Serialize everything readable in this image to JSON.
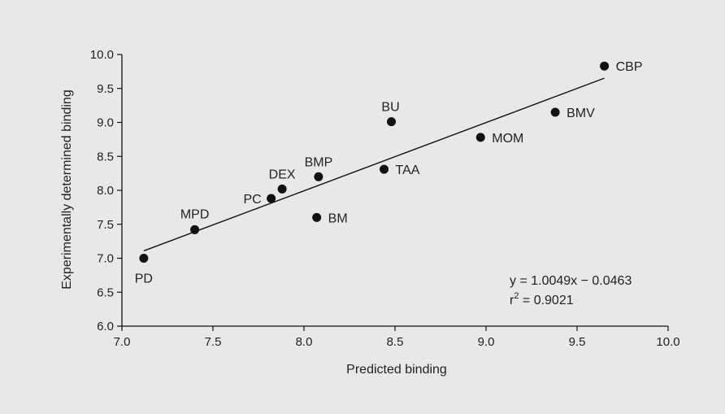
{
  "chart_data": {
    "type": "scatter",
    "title": "",
    "xlabel": "Predicted binding",
    "ylabel": "Experimentally determined binding",
    "xlim": [
      7.0,
      10.0
    ],
    "ylim": [
      6.0,
      10.0
    ],
    "xticks": [
      "7.0",
      "7.5",
      "8.0",
      "8.5",
      "9.0",
      "9.5",
      "10.0"
    ],
    "yticks": [
      "6.0",
      "6.5",
      "7.0",
      "7.5",
      "8.0",
      "8.5",
      "9.0",
      "9.5",
      "10.0"
    ],
    "grid": false,
    "points": [
      {
        "label": "PD",
        "x": 7.12,
        "y": 7.0
      },
      {
        "label": "MPD",
        "x": 7.4,
        "y": 7.42
      },
      {
        "label": "PC",
        "x": 7.82,
        "y": 7.88
      },
      {
        "label": "DEX",
        "x": 7.88,
        "y": 8.02
      },
      {
        "label": "BMP",
        "x": 8.08,
        "y": 8.2
      },
      {
        "label": "BM",
        "x": 8.07,
        "y": 7.6
      },
      {
        "label": "TAA",
        "x": 8.44,
        "y": 8.31
      },
      {
        "label": "BU",
        "x": 8.48,
        "y": 9.01
      },
      {
        "label": "MOM",
        "x": 8.97,
        "y": 8.78
      },
      {
        "label": "BMV",
        "x": 9.38,
        "y": 9.15
      },
      {
        "label": "CBP",
        "x": 9.65,
        "y": 9.83
      }
    ],
    "fit_line": {
      "x_start": 7.12,
      "x_end": 9.65,
      "slope": 1.0049,
      "intercept": -0.0463
    },
    "annotation": {
      "equation": "y = 1.0049x − 0.0463",
      "r2_prefix": "r",
      "r2_sup": "2",
      "r2_value": " = 0.9021"
    }
  }
}
